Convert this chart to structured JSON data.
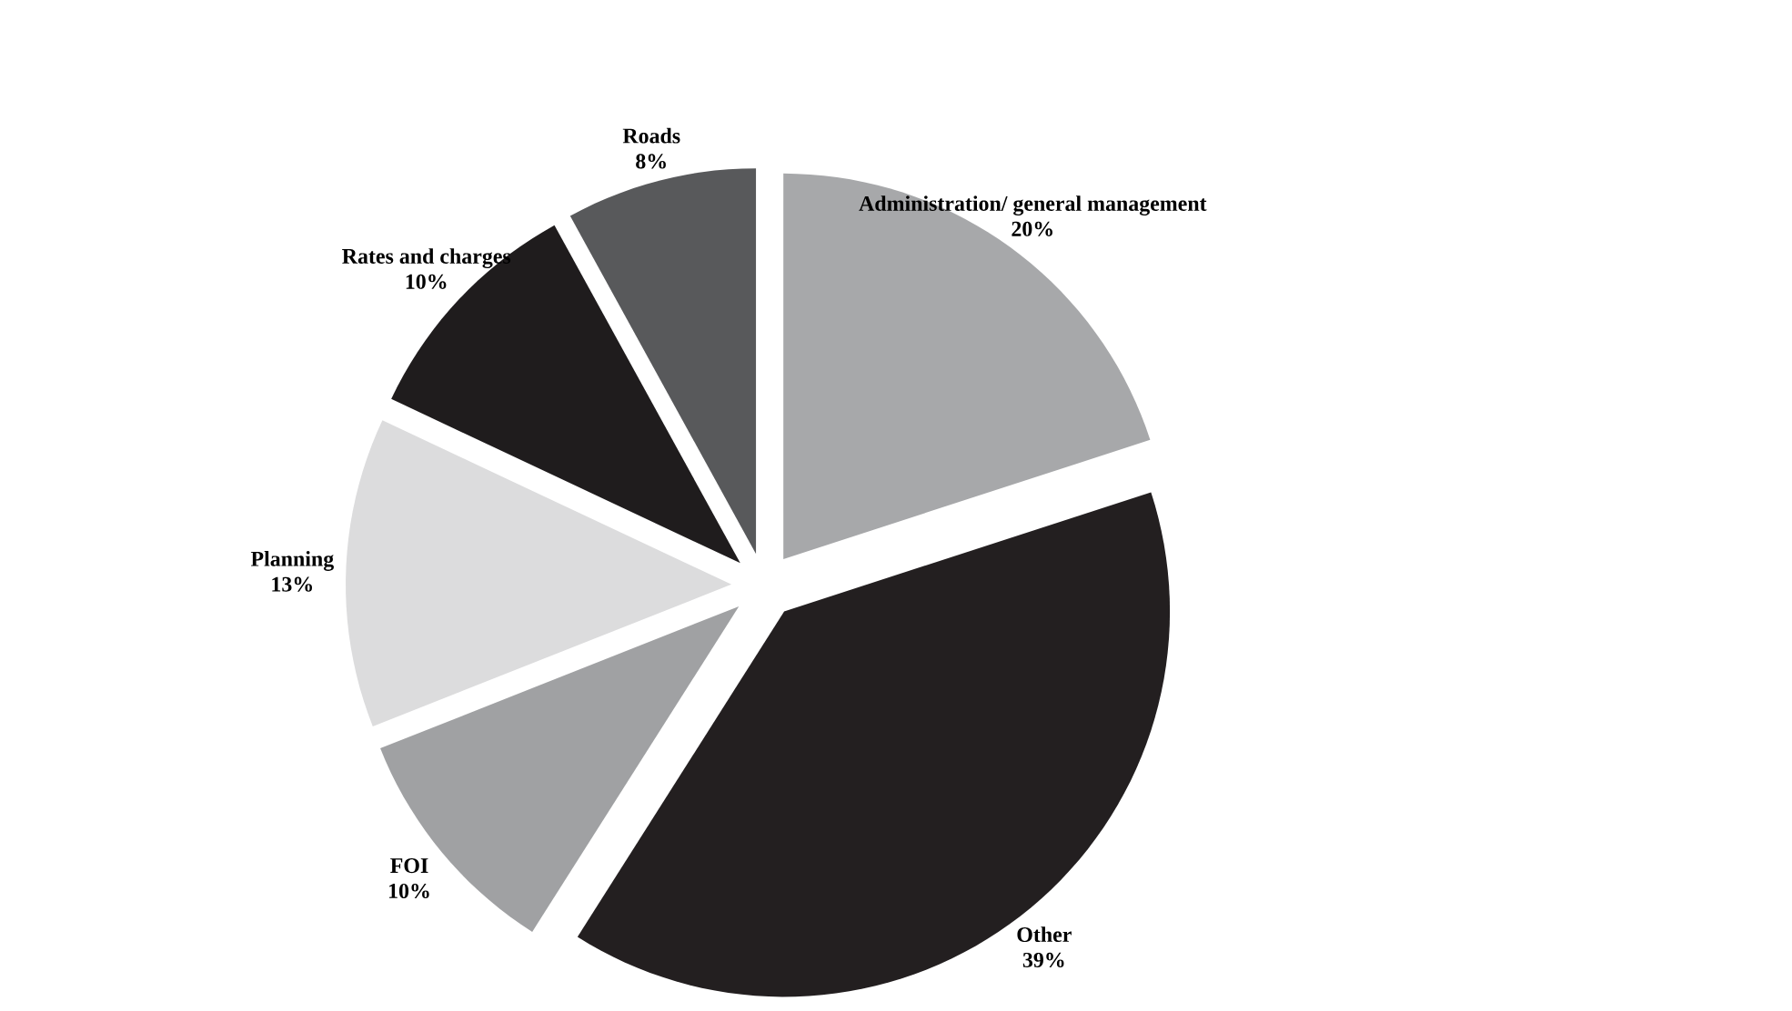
{
  "chart_data": {
    "type": "pie",
    "categories": [
      "Administration/ general management",
      "Other",
      "FOI",
      "Planning",
      "Rates and charges",
      "Roads"
    ],
    "values": [
      20,
      39,
      10,
      13,
      10,
      8
    ],
    "value_labels": [
      "20%",
      "39%",
      "10%",
      "13%",
      "10%",
      "8%"
    ],
    "colors": [
      "#a7a8aa",
      "#231f20",
      "#a0a1a3",
      "#dcdcdd",
      "#1f1c1d",
      "#58595b"
    ]
  }
}
